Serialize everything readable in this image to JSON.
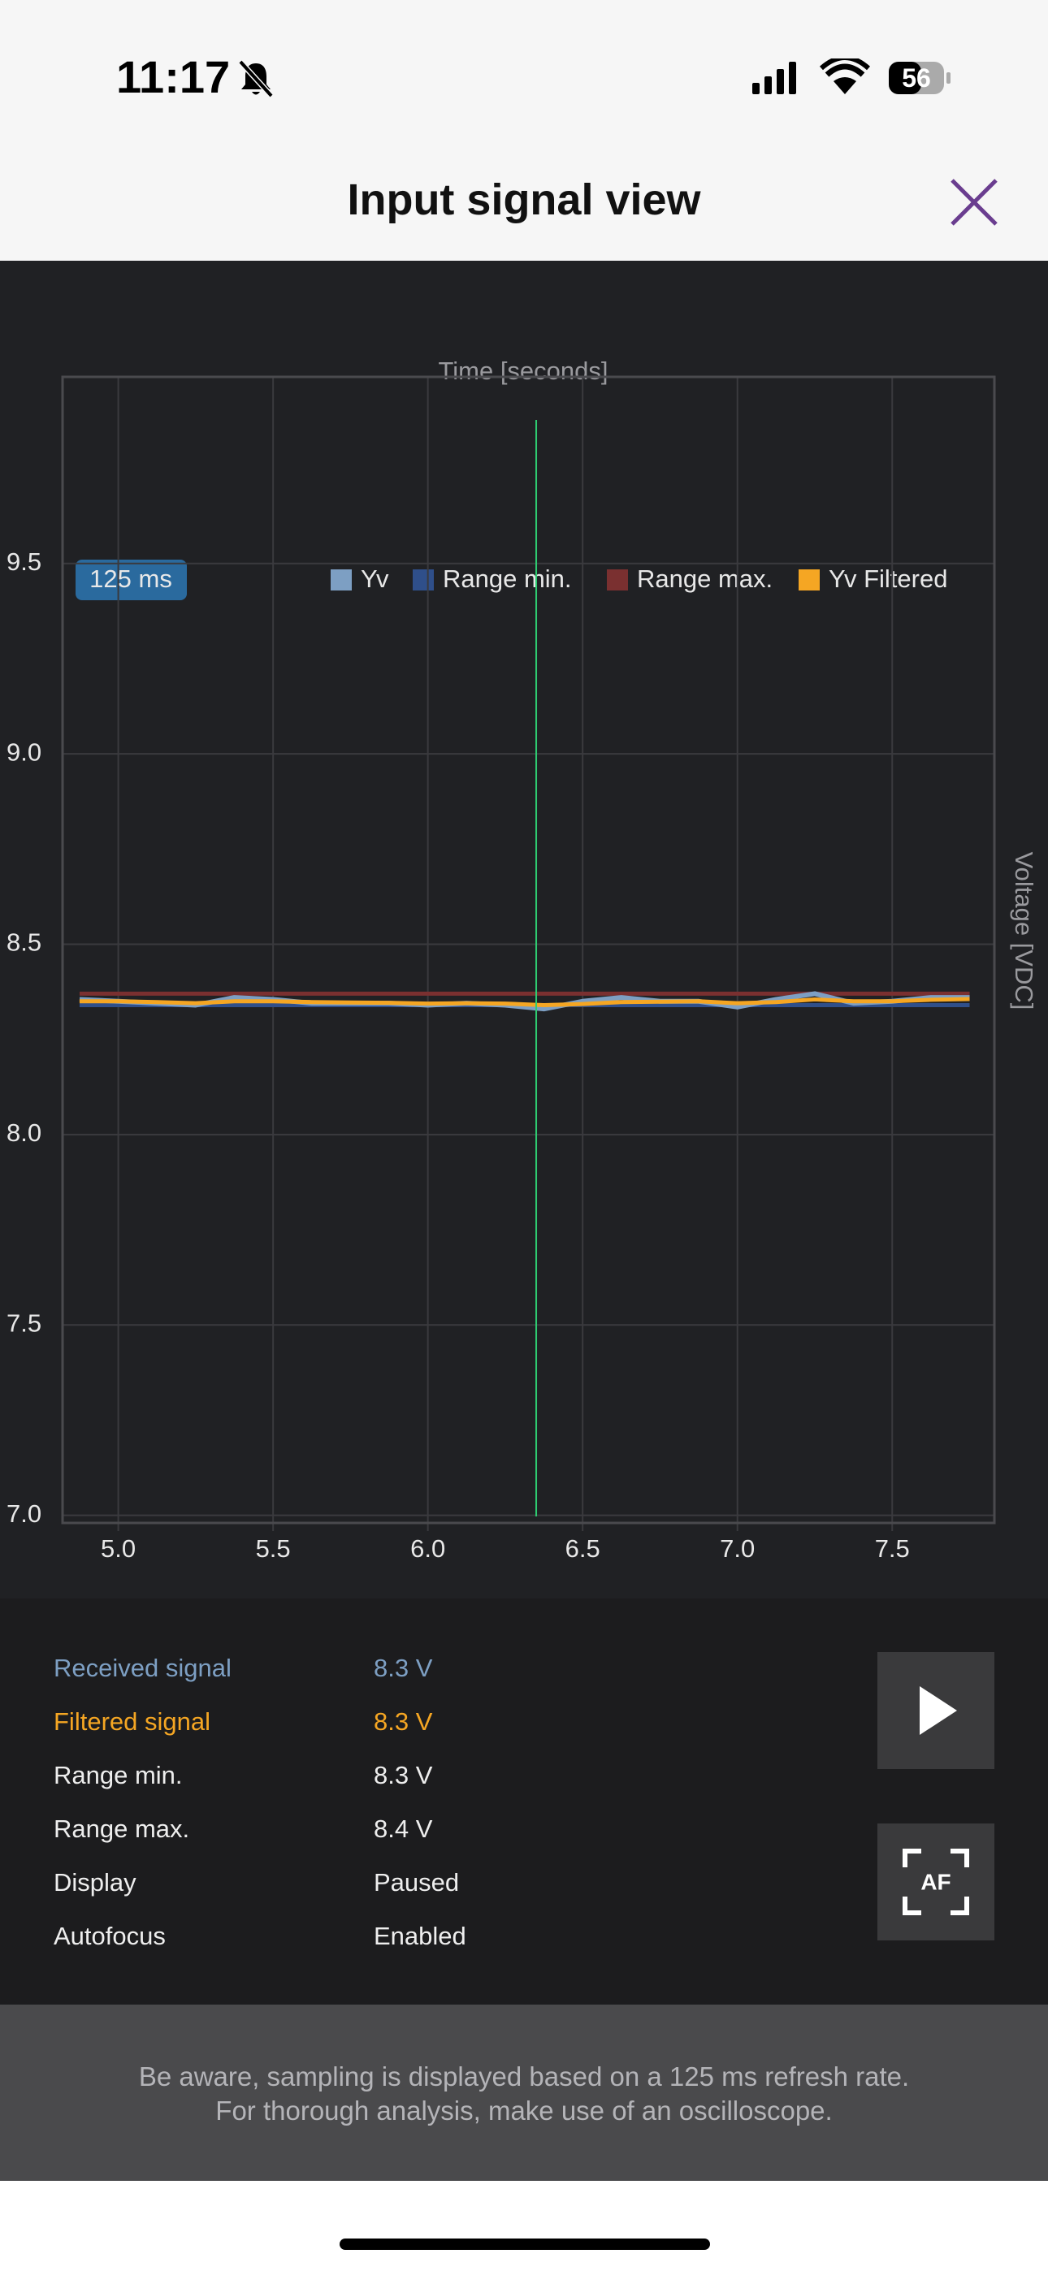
{
  "status_bar": {
    "time": "11:17",
    "battery": "56"
  },
  "header": {
    "title": "Input signal view"
  },
  "chart_data": {
    "type": "line",
    "refresh_badge": "125 ms",
    "x_label": "Time [seconds]",
    "y_label": "Voltage [VDC]",
    "x": [
      4.875,
      5.0,
      5.125,
      5.25,
      5.375,
      5.5,
      5.625,
      5.75,
      5.875,
      6.0,
      6.125,
      6.25,
      6.375,
      6.5,
      6.625,
      6.75,
      6.875,
      7.0,
      7.125,
      7.25,
      7.375,
      7.5,
      7.625,
      7.75
    ],
    "series": [
      {
        "name": "Yv",
        "color": "#7d9fc3",
        "values": [
          8.355,
          8.35,
          8.345,
          8.34,
          8.36,
          8.355,
          8.345,
          8.345,
          8.345,
          8.34,
          8.345,
          8.34,
          8.33,
          8.35,
          8.36,
          8.35,
          8.35,
          8.335,
          8.355,
          8.37,
          8.345,
          8.35,
          8.36,
          8.36
        ]
      },
      {
        "name": "Range min.",
        "color": "#2f4f8a",
        "values": [
          8.34,
          8.34,
          8.34,
          8.34,
          8.34,
          8.34,
          8.34,
          8.34,
          8.34,
          8.34,
          8.34,
          8.34,
          8.34,
          8.34,
          8.34,
          8.34,
          8.34,
          8.34,
          8.34,
          8.34,
          8.34,
          8.34,
          8.34,
          8.34
        ]
      },
      {
        "name": "Range max.",
        "color": "#7a3030",
        "values": [
          8.37,
          8.37,
          8.37,
          8.37,
          8.37,
          8.37,
          8.37,
          8.37,
          8.37,
          8.37,
          8.37,
          8.37,
          8.37,
          8.37,
          8.37,
          8.37,
          8.37,
          8.37,
          8.37,
          8.37,
          8.37,
          8.37,
          8.37,
          8.37
        ]
      },
      {
        "name": "Yv Filtered",
        "color": "#f5a623",
        "values": [
          8.35,
          8.35,
          8.348,
          8.345,
          8.35,
          8.35,
          8.348,
          8.347,
          8.346,
          8.344,
          8.345,
          8.344,
          8.34,
          8.343,
          8.348,
          8.349,
          8.35,
          8.345,
          8.348,
          8.355,
          8.35,
          8.35,
          8.354,
          8.356
        ]
      }
    ],
    "cursor": {
      "x": 6.35,
      "color": "#2ecc71"
    },
    "xlim": [
      4.82,
      7.83
    ],
    "ylim": [
      6.98,
      9.99
    ],
    "xticks": [
      {
        "value": 5,
        "label": "5.0"
      },
      5.5,
      {
        "value": 6,
        "label": "6.0"
      },
      6.5,
      {
        "value": 7,
        "label": "7.0"
      },
      7.5
    ],
    "yticks": [
      {
        "value": 7,
        "label": "7.0"
      },
      7.5,
      {
        "value": 8,
        "label": "8.0"
      },
      8.5,
      {
        "value": 9,
        "label": "9.0"
      },
      9.5
    ],
    "grid": true
  },
  "info": {
    "rows": [
      [
        "Received signal",
        "8.3 V"
      ],
      [
        "Filtered signal",
        "8.3 V"
      ],
      [
        "Range min.",
        "8.3 V"
      ],
      [
        "Range max.",
        "8.4 V"
      ],
      [
        "Display",
        "Paused"
      ],
      [
        "Autofocus",
        "Enabled"
      ]
    ],
    "af_button": "AF"
  },
  "footer": {
    "lines": [
      "Be aware, sampling is displayed based on a 125 ms refresh rate.",
      "For thorough analysis, make use of an oscilloscope."
    ]
  }
}
